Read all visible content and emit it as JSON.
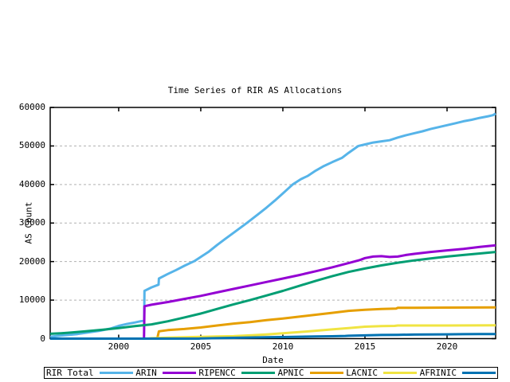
{
  "chart_data": {
    "type": "line",
    "title": "Time Series of RIR AS Allocations",
    "xlabel": "Date",
    "ylabel": "AS Count",
    "xlim": [
      1995.83,
      2022.96
    ],
    "ylim": [
      0,
      60000
    ],
    "x_ticks": [
      2000,
      2005,
      2010,
      2015,
      2020
    ],
    "y_ticks": [
      0,
      10000,
      20000,
      30000,
      40000,
      50000,
      60000
    ],
    "grid": "horizontal dashed gray lines at y ticks (except 0 and 60000)",
    "legend_position": "bottom boxed row",
    "frame_color": "#000000",
    "grid_color": "#b0b0b0",
    "line_width": 3,
    "series": [
      {
        "name": "RIR Total",
        "color": "#56b4e9",
        "points": [
          [
            1995.83,
            500
          ],
          [
            1996.5,
            800
          ],
          [
            1997,
            1000
          ],
          [
            1997.5,
            1200
          ],
          [
            1998,
            1500
          ],
          [
            1998.8,
            2000
          ],
          [
            1999.5,
            2600
          ],
          [
            2000,
            3300
          ],
          [
            2000.5,
            3800
          ],
          [
            2001,
            4200
          ],
          [
            2001.55,
            4700
          ],
          [
            2001.57,
            12400
          ],
          [
            2002,
            13300
          ],
          [
            2002.43,
            14000
          ],
          [
            2002.45,
            15600
          ],
          [
            2003,
            16800
          ],
          [
            2003.5,
            17800
          ],
          [
            2004,
            18900
          ],
          [
            2004.6,
            20100
          ],
          [
            2005,
            21200
          ],
          [
            2005.5,
            22600
          ],
          [
            2006,
            24300
          ],
          [
            2006.5,
            25900
          ],
          [
            2007,
            27500
          ],
          [
            2007.8,
            30000
          ],
          [
            2008.5,
            32300
          ],
          [
            2009,
            34000
          ],
          [
            2009.5,
            35800
          ],
          [
            2010,
            37700
          ],
          [
            2010.6,
            40000
          ],
          [
            2011.1,
            41400
          ],
          [
            2011.5,
            42200
          ],
          [
            2012,
            43600
          ],
          [
            2012.5,
            44800
          ],
          [
            2013,
            45800
          ],
          [
            2013.6,
            46900
          ],
          [
            2014,
            48200
          ],
          [
            2014.6,
            50000
          ],
          [
            2015,
            50400
          ],
          [
            2015.5,
            50900
          ],
          [
            2016,
            51200
          ],
          [
            2016.5,
            51500
          ],
          [
            2017,
            52200
          ],
          [
            2017.5,
            52800
          ],
          [
            2018,
            53300
          ],
          [
            2018.5,
            53800
          ],
          [
            2019,
            54400
          ],
          [
            2019.5,
            54900
          ],
          [
            2020,
            55400
          ],
          [
            2020.5,
            55900
          ],
          [
            2021,
            56400
          ],
          [
            2021.5,
            56800
          ],
          [
            2022,
            57300
          ],
          [
            2022.5,
            57700
          ],
          [
            2022.8,
            58000
          ],
          [
            2022.96,
            58400
          ]
        ]
      },
      {
        "name": "ARIN",
        "color": "#9400d3",
        "points": [
          [
            1995.83,
            0
          ],
          [
            2001.54,
            0
          ],
          [
            2001.57,
            8400
          ],
          [
            2002,
            8800
          ],
          [
            2003,
            9500
          ],
          [
            2004,
            10300
          ],
          [
            2005,
            11100
          ],
          [
            2006,
            12000
          ],
          [
            2007,
            12900
          ],
          [
            2008,
            13800
          ],
          [
            2009,
            14700
          ],
          [
            2010,
            15600
          ],
          [
            2011,
            16500
          ],
          [
            2012,
            17500
          ],
          [
            2013,
            18500
          ],
          [
            2014,
            19600
          ],
          [
            2014.7,
            20400
          ],
          [
            2015,
            20900
          ],
          [
            2015.5,
            21300
          ],
          [
            2016,
            21400
          ],
          [
            2016.5,
            21200
          ],
          [
            2017,
            21300
          ],
          [
            2017.5,
            21700
          ],
          [
            2018,
            22000
          ],
          [
            2019,
            22500
          ],
          [
            2020,
            22900
          ],
          [
            2021,
            23300
          ],
          [
            2022,
            23800
          ],
          [
            2022.96,
            24200
          ]
        ]
      },
      {
        "name": "RIPENCC",
        "color": "#009e73",
        "points": [
          [
            1995.83,
            1250
          ],
          [
            1996.5,
            1400
          ],
          [
            1997,
            1550
          ],
          [
            1998,
            1900
          ],
          [
            1999,
            2300
          ],
          [
            2000,
            2750
          ],
          [
            2001,
            3250
          ],
          [
            2002,
            3700
          ],
          [
            2003,
            4500
          ],
          [
            2004,
            5500
          ],
          [
            2005,
            6500
          ],
          [
            2006,
            7700
          ],
          [
            2007,
            8900
          ],
          [
            2008,
            10000
          ],
          [
            2009,
            11200
          ],
          [
            2010,
            12400
          ],
          [
            2011,
            13700
          ],
          [
            2012,
            15000
          ],
          [
            2013,
            16200
          ],
          [
            2014,
            17300
          ],
          [
            2015,
            18200
          ],
          [
            2016,
            19000
          ],
          [
            2017,
            19700
          ],
          [
            2018,
            20300
          ],
          [
            2019,
            20800
          ],
          [
            2020,
            21300
          ],
          [
            2021,
            21700
          ],
          [
            2022,
            22100
          ],
          [
            2022.96,
            22500
          ]
        ]
      },
      {
        "name": "APNIC",
        "color": "#e69f00",
        "points": [
          [
            1995.83,
            0
          ],
          [
            2002.35,
            0
          ],
          [
            2002.45,
            1900
          ],
          [
            2003,
            2200
          ],
          [
            2004,
            2500
          ],
          [
            2005,
            2900
          ],
          [
            2006,
            3400
          ],
          [
            2007,
            3900
          ],
          [
            2008,
            4300
          ],
          [
            2009,
            4800
          ],
          [
            2010,
            5200
          ],
          [
            2011,
            5700
          ],
          [
            2012,
            6200
          ],
          [
            2013,
            6700
          ],
          [
            2014,
            7200
          ],
          [
            2015,
            7500
          ],
          [
            2016,
            7700
          ],
          [
            2016.9,
            7800
          ],
          [
            2017,
            8000
          ],
          [
            2018,
            8000
          ],
          [
            2020,
            8050
          ],
          [
            2022.96,
            8100
          ]
        ]
      },
      {
        "name": "LACNIC",
        "color": "#f0e442",
        "points": [
          [
            1995.83,
            0
          ],
          [
            2001.8,
            0
          ],
          [
            2002,
            100
          ],
          [
            2003,
            250
          ],
          [
            2004,
            350
          ],
          [
            2005,
            450
          ],
          [
            2006,
            550
          ],
          [
            2007,
            650
          ],
          [
            2008,
            850
          ],
          [
            2009,
            1100
          ],
          [
            2010,
            1400
          ],
          [
            2011,
            1700
          ],
          [
            2012,
            2050
          ],
          [
            2013,
            2400
          ],
          [
            2014,
            2750
          ],
          [
            2015,
            3100
          ],
          [
            2016,
            3250
          ],
          [
            2016.8,
            3300
          ],
          [
            2017,
            3400
          ],
          [
            2018,
            3400
          ],
          [
            2020,
            3400
          ],
          [
            2022.96,
            3450
          ]
        ]
      },
      {
        "name": "AFRINIC",
        "color": "#0072b2",
        "points": [
          [
            1995.83,
            0
          ],
          [
            2004.9,
            0
          ],
          [
            2005,
            50
          ],
          [
            2006,
            120
          ],
          [
            2007,
            200
          ],
          [
            2008,
            280
          ],
          [
            2009,
            350
          ],
          [
            2010,
            420
          ],
          [
            2011,
            500
          ],
          [
            2012,
            560
          ],
          [
            2013,
            620
          ],
          [
            2013.8,
            700
          ],
          [
            2014,
            750
          ],
          [
            2015,
            850
          ],
          [
            2016,
            950
          ],
          [
            2017,
            1000
          ],
          [
            2018,
            1050
          ],
          [
            2019,
            1100
          ],
          [
            2020,
            1120
          ],
          [
            2021,
            1150
          ],
          [
            2022,
            1180
          ],
          [
            2022.96,
            1200
          ]
        ]
      }
    ]
  }
}
